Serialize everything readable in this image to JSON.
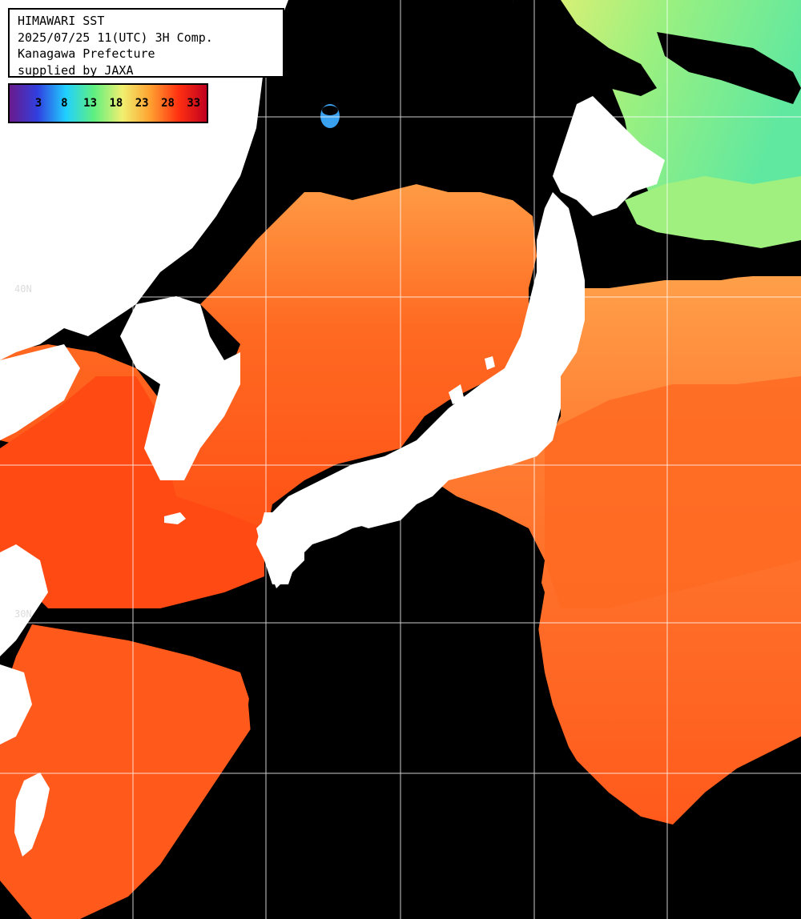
{
  "header": {
    "title": "HIMAWARI SST",
    "datetime": "2025/07/25 11(UTC) 3H Comp.",
    "region": "Kanagawa Prefecture",
    "credit": "supplied by JAXA"
  },
  "legend": {
    "ticks": [
      "3",
      "8",
      "13",
      "18",
      "23",
      "28",
      "33"
    ],
    "colors": [
      "#6a1a8c",
      "#3040e0",
      "#20d0ff",
      "#60f080",
      "#f0f070",
      "#ffa030",
      "#ff3010",
      "#c00020"
    ]
  },
  "grid_labels": {
    "lat_40": "40N",
    "lat_30": "30N"
  },
  "colors": {
    "ocean_warm": "#ff4a14",
    "ocean_mid": "#ff7a2a",
    "ocean_cool": "#ff9a40",
    "land": "#ffffff",
    "no_data": "#000000",
    "north_sea_green": "#80f080",
    "grid": "#ffffff"
  }
}
